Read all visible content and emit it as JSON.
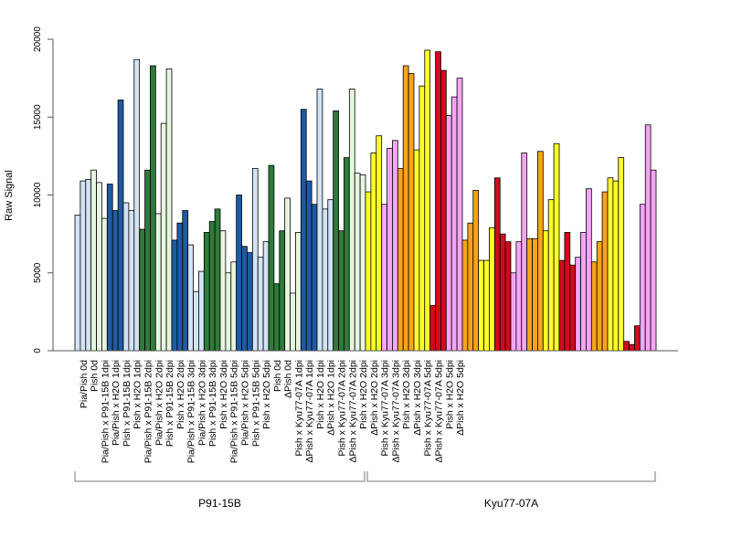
{
  "chart_data": {
    "type": "bar",
    "title": "",
    "xlabel": "",
    "ylabel": "Raw Signal",
    "ylim": [
      0,
      20000
    ],
    "yticks": [
      0,
      5000,
      10000,
      15000,
      20000
    ],
    "grid": false,
    "legend": "none",
    "bar_color": {
      "lightblue": "#d2e3f4",
      "lightgreen": "#e7f6df",
      "blue": "#1f5aa3",
      "green": "#2e7a3a",
      "yellow": "#ffff29",
      "pink": "#f5a5f5",
      "orange": "#f7a41c",
      "red": "#d3091d"
    },
    "categories": [
      "Pia/Pish 0d",
      "Pish 0d",
      "Pia/Pish x P91-15B 1dpi",
      "Pia/Pish x H2O 1dpi",
      "Pish x P91-15B 1dpi",
      "Pish x H2O 1dpi",
      "Pia/Pish x P91-15B 2dpi",
      "Pia/Pish x H2O 2dpi",
      "Pish x P91-15B 2dpi",
      "Pish x H2O 2dpi",
      "Pia/Pish x P91-15B 3dpi",
      "Pia/Pish x H2O 3dpi",
      "Pish x P91-15B 3dpi",
      "Pish x H2O 3dpi",
      "Pia/Pish x P91-15B 5dpi",
      "Pia/Pish x H2O 5dpi",
      "Pish x P91-15B 5dpi",
      "Pish x H2O 5dpi",
      "Pish 0d",
      "ΔPish 0d",
      "Pish x Kyu77-07A 1dpi",
      "ΔPish x Kyu77-07A 1dpi",
      "Pish x H2O 1dpi",
      "ΔPish x H2O 1dpi",
      "Pish x Kyu77-07A 2dpi",
      "ΔPish x Kyu77-07A 2dpi",
      "Pish x H2O 2dpi",
      "ΔPish x H2O 2dpi",
      "Pish x Kyu77-07A 3dpi",
      "ΔPish x Kyu77-07A 3dpi",
      "Pish x H2O 3dpi",
      "ΔPish x H2O 3dpi",
      "Pish x Kyu77-07A 5dpi",
      "ΔPish x Kyu77-07A 5dpi",
      "Pish x H2O 5dpi",
      "ΔPish x H2O 5dpi"
    ],
    "label_slots": [
      1,
      3,
      5,
      7,
      9,
      11,
      13,
      15,
      17,
      19,
      21,
      23,
      25,
      27,
      29,
      31,
      33,
      35,
      37,
      39,
      41,
      43,
      45,
      47,
      49,
      51,
      53,
      55,
      57,
      59,
      61,
      63,
      65,
      67,
      69,
      71
    ],
    "bars": [
      {
        "value": 8700,
        "color": "lightblue"
      },
      {
        "value": 10900,
        "color": "lightblue"
      },
      {
        "value": 11000,
        "color": "lightblue"
      },
      {
        "value": 11600,
        "color": "lightgreen"
      },
      {
        "value": 10800,
        "color": "lightgreen"
      },
      {
        "value": 8500,
        "color": "lightgreen"
      },
      {
        "value": 10700,
        "color": "blue"
      },
      {
        "value": 9000,
        "color": "blue"
      },
      {
        "value": 16100,
        "color": "blue"
      },
      {
        "value": 9500,
        "color": "lightblue"
      },
      {
        "value": 9000,
        "color": "lightblue"
      },
      {
        "value": 18700,
        "color": "lightblue"
      },
      {
        "value": 7800,
        "color": "green"
      },
      {
        "value": 11600,
        "color": "green"
      },
      {
        "value": 18300,
        "color": "green"
      },
      {
        "value": 8800,
        "color": "lightgreen"
      },
      {
        "value": 14600,
        "color": "lightgreen"
      },
      {
        "value": 18100,
        "color": "lightgreen"
      },
      {
        "value": 7100,
        "color": "blue"
      },
      {
        "value": 8200,
        "color": "blue"
      },
      {
        "value": 9000,
        "color": "blue"
      },
      {
        "value": 6800,
        "color": "lightblue"
      },
      {
        "value": 3800,
        "color": "lightblue"
      },
      {
        "value": 5100,
        "color": "lightblue"
      },
      {
        "value": 7600,
        "color": "green"
      },
      {
        "value": 8300,
        "color": "green"
      },
      {
        "value": 9100,
        "color": "green"
      },
      {
        "value": 7700,
        "color": "lightgreen"
      },
      {
        "value": 5000,
        "color": "lightgreen"
      },
      {
        "value": 5700,
        "color": "lightgreen"
      },
      {
        "value": 10000,
        "color": "blue"
      },
      {
        "value": 6700,
        "color": "blue"
      },
      {
        "value": 6300,
        "color": "blue"
      },
      {
        "value": 11700,
        "color": "lightblue"
      },
      {
        "value": 6000,
        "color": "lightblue"
      },
      {
        "value": 7000,
        "color": "lightblue"
      },
      {
        "value": 11900,
        "color": "green"
      },
      {
        "value": 4300,
        "color": "green"
      },
      {
        "value": 7700,
        "color": "green"
      },
      {
        "value": 9800,
        "color": "lightgreen"
      },
      {
        "value": 3700,
        "color": "lightgreen"
      },
      {
        "value": 7600,
        "color": "lightgreen"
      },
      {
        "value": 15500,
        "color": "blue"
      },
      {
        "value": 10900,
        "color": "blue"
      },
      {
        "value": 9400,
        "color": "blue"
      },
      {
        "value": 16800,
        "color": "lightblue"
      },
      {
        "value": 9100,
        "color": "lightblue"
      },
      {
        "value": 9700,
        "color": "lightblue"
      },
      {
        "value": 15400,
        "color": "green"
      },
      {
        "value": 7700,
        "color": "green"
      },
      {
        "value": 12400,
        "color": "green"
      },
      {
        "value": 16800,
        "color": "lightgreen"
      },
      {
        "value": 11400,
        "color": "lightgreen"
      },
      {
        "value": 11300,
        "color": "lightgreen"
      },
      {
        "value": 10200,
        "color": "yellow"
      },
      {
        "value": 12700,
        "color": "yellow"
      },
      {
        "value": 13800,
        "color": "yellow"
      },
      {
        "value": 9400,
        "color": "pink"
      },
      {
        "value": 13000,
        "color": "pink"
      },
      {
        "value": 13500,
        "color": "pink"
      },
      {
        "value": 11700,
        "color": "orange"
      },
      {
        "value": 18300,
        "color": "orange"
      },
      {
        "value": 17800,
        "color": "orange"
      },
      {
        "value": 12900,
        "color": "yellow"
      },
      {
        "value": 17000,
        "color": "yellow"
      },
      {
        "value": 19300,
        "color": "yellow"
      },
      {
        "value": 2900,
        "color": "red"
      },
      {
        "value": 19200,
        "color": "red"
      },
      {
        "value": 18000,
        "color": "red"
      },
      {
        "value": 15100,
        "color": "pink"
      },
      {
        "value": 16300,
        "color": "pink"
      },
      {
        "value": 17500,
        "color": "pink"
      },
      {
        "value": 7100,
        "color": "orange"
      },
      {
        "value": 8200,
        "color": "orange"
      },
      {
        "value": 10300,
        "color": "orange"
      },
      {
        "value": 5800,
        "color": "yellow"
      },
      {
        "value": 5800,
        "color": "yellow"
      },
      {
        "value": 7900,
        "color": "yellow"
      },
      {
        "value": 11100,
        "color": "red"
      },
      {
        "value": 7500,
        "color": "red"
      },
      {
        "value": 7000,
        "color": "red"
      },
      {
        "value": 5000,
        "color": "pink"
      },
      {
        "value": 7000,
        "color": "pink"
      },
      {
        "value": 12700,
        "color": "pink"
      },
      {
        "value": 7200,
        "color": "orange"
      },
      {
        "value": 7200,
        "color": "orange"
      },
      {
        "value": 12800,
        "color": "orange"
      },
      {
        "value": 7700,
        "color": "yellow"
      },
      {
        "value": 9700,
        "color": "yellow"
      },
      {
        "value": 13300,
        "color": "yellow"
      },
      {
        "value": 5800,
        "color": "red"
      },
      {
        "value": 7600,
        "color": "red"
      },
      {
        "value": 5500,
        "color": "red"
      },
      {
        "value": 6000,
        "color": "pink"
      },
      {
        "value": 7600,
        "color": "pink"
      },
      {
        "value": 10400,
        "color": "pink"
      },
      {
        "value": 5700,
        "color": "orange"
      },
      {
        "value": 7000,
        "color": "orange"
      },
      {
        "value": 10200,
        "color": "orange"
      },
      {
        "value": 11100,
        "color": "yellow"
      },
      {
        "value": 10900,
        "color": "yellow"
      },
      {
        "value": 12400,
        "color": "yellow"
      },
      {
        "value": 600,
        "color": "red"
      },
      {
        "value": 400,
        "color": "red"
      },
      {
        "value": 1600,
        "color": "red"
      },
      {
        "value": 9400,
        "color": "pink"
      },
      {
        "value": 14500,
        "color": "pink"
      },
      {
        "value": 11600,
        "color": "pink"
      }
    ],
    "groups": [
      {
        "label": "P91-15B",
        "first_category": 0,
        "last_category": 17
      },
      {
        "label": "Kyu77-07A",
        "first_category": 18,
        "last_category": 35
      }
    ]
  }
}
